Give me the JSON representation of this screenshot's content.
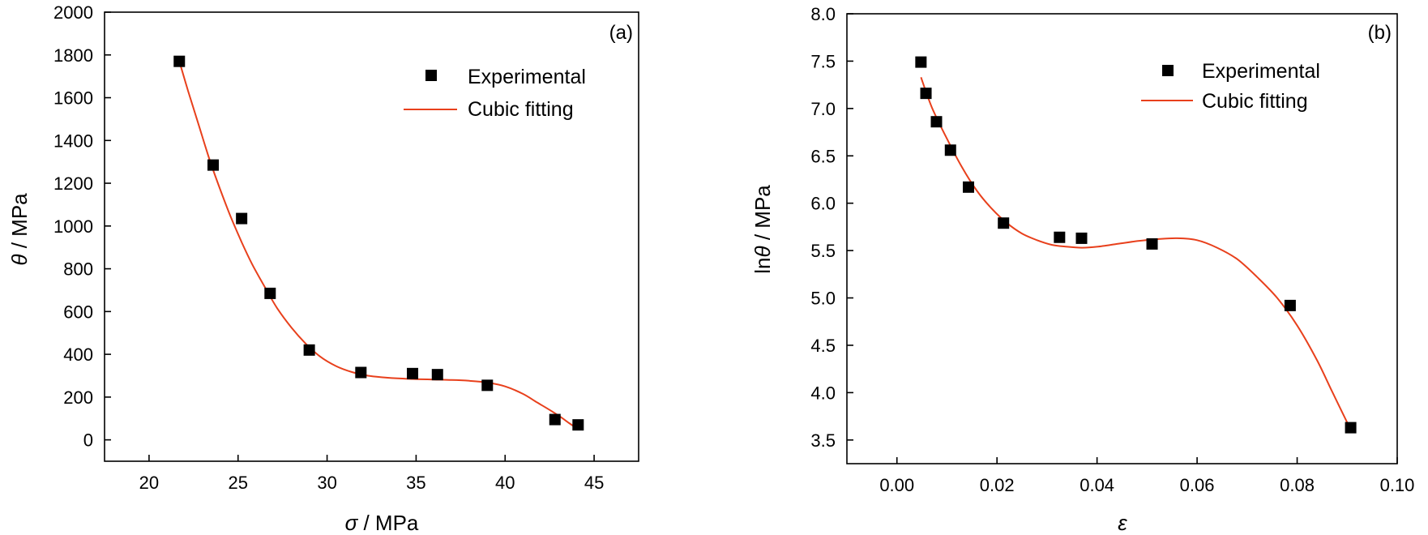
{
  "chart_data": [
    {
      "type": "scatter",
      "panel_label": "(a)",
      "xlabel": {
        "symbol": "σ",
        "unit": " / MPa"
      },
      "ylabel": {
        "symbol": "θ",
        "unit": " / MPa"
      },
      "xlim": [
        17.5,
        47.5
      ],
      "ylim": [
        -100,
        2000
      ],
      "xticks": [
        20,
        25,
        30,
        35,
        40,
        45
      ],
      "yticks": [
        0,
        200,
        400,
        600,
        800,
        1000,
        1200,
        1400,
        1600,
        1800,
        2000
      ],
      "series": [
        {
          "name": "Experimental",
          "kind": "points",
          "color": "#000000",
          "x": [
            21.7,
            23.6,
            25.2,
            26.8,
            29.0,
            31.9,
            34.8,
            36.2,
            39.0,
            42.8,
            44.1
          ],
          "y": [
            1770,
            1285,
            1035,
            685,
            420,
            315,
            310,
            305,
            255,
            95,
            70
          ]
        },
        {
          "name": "Cubic fitting",
          "kind": "line",
          "color": "#e8401c",
          "x": [
            21.7,
            22.2,
            22.8,
            23.4,
            24.0,
            24.6,
            25.2,
            25.8,
            26.5,
            27.2,
            28.0,
            28.8,
            29.6,
            30.5,
            31.4,
            32.3,
            33.2,
            34.1,
            35.0,
            36.0,
            37.0,
            38.0,
            39.0,
            40.0,
            41.0,
            41.8,
            42.5,
            43.1,
            43.6,
            44.1
          ],
          "y": [
            1770,
            1630,
            1470,
            1310,
            1170,
            1040,
            925,
            820,
            715,
            615,
            525,
            450,
            390,
            345,
            317,
            300,
            292,
            287,
            284,
            282,
            280,
            276,
            268,
            250,
            215,
            175,
            140,
            108,
            78,
            50
          ]
        }
      ],
      "legend": {
        "placement": "top-right",
        "entries": [
          "Experimental",
          "Cubic fitting"
        ]
      }
    },
    {
      "type": "scatter",
      "panel_label": "(b)",
      "xlabel": {
        "symbol": "ε",
        "unit": ""
      },
      "ylabel": {
        "symbol": "θ",
        "prefix": "ln",
        "unit": " / MPa"
      },
      "xlim": [
        -0.01,
        0.1
      ],
      "ylim": [
        3.25,
        8.0
      ],
      "xticks": [
        0.0,
        0.02,
        0.04,
        0.06,
        0.08,
        0.1
      ],
      "xtick_labels": [
        "0.00",
        "0.02",
        "0.04",
        "0.06",
        "0.08",
        "0.10"
      ],
      "yticks": [
        3.5,
        4.0,
        4.5,
        5.0,
        5.5,
        6.0,
        6.5,
        7.0,
        7.5,
        8.0
      ],
      "ytick_labels": [
        "3.5",
        "4.0",
        "4.5",
        "5.0",
        "5.5",
        "6.0",
        "6.5",
        "7.0",
        "7.5",
        "8.0"
      ],
      "series": [
        {
          "name": "Experimental",
          "kind": "points",
          "color": "#000000",
          "x": [
            0.0048,
            0.0058,
            0.0079,
            0.0107,
            0.0143,
            0.0213,
            0.0325,
            0.0369,
            0.051,
            0.0786,
            0.0907
          ],
          "y": [
            7.49,
            7.16,
            6.86,
            6.56,
            6.17,
            5.79,
            5.64,
            5.63,
            5.57,
            4.92,
            3.63
          ]
        },
        {
          "name": "Cubic fitting",
          "kind": "line",
          "color": "#e8401c",
          "x": [
            0.0048,
            0.007,
            0.01,
            0.013,
            0.016,
            0.019,
            0.022,
            0.025,
            0.028,
            0.031,
            0.034,
            0.037,
            0.04,
            0.044,
            0.048,
            0.052,
            0.056,
            0.06,
            0.064,
            0.068,
            0.072,
            0.076,
            0.08,
            0.084,
            0.087,
            0.0905
          ],
          "y": [
            7.33,
            7.01,
            6.68,
            6.38,
            6.13,
            5.94,
            5.79,
            5.68,
            5.61,
            5.56,
            5.54,
            5.53,
            5.54,
            5.57,
            5.6,
            5.62,
            5.63,
            5.61,
            5.53,
            5.41,
            5.22,
            5.0,
            4.71,
            4.34,
            4.01,
            3.63
          ]
        }
      ],
      "legend": {
        "placement": "top-right",
        "entries": [
          "Experimental",
          "Cubic fitting"
        ]
      }
    }
  ]
}
